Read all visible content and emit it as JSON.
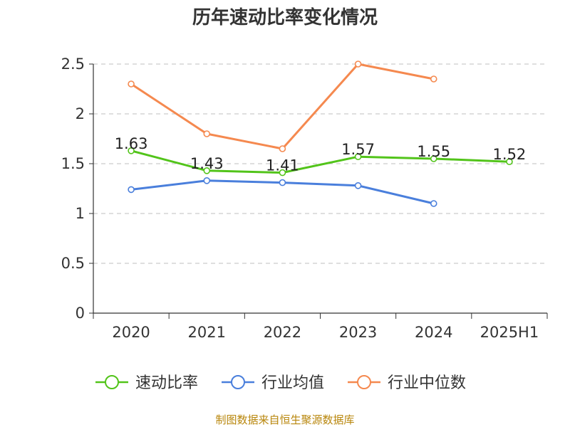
{
  "chart_data": {
    "type": "line",
    "title": "历年速动比率变化情况",
    "categories": [
      "2020",
      "2021",
      "2022",
      "2023",
      "2024",
      "2025H1"
    ],
    "ylim": [
      0,
      2.5
    ],
    "yticks": [
      "0",
      "0.5",
      "1",
      "1.5",
      "2",
      "2.5"
    ],
    "grid": true,
    "legend_position": "bottom",
    "series": [
      {
        "name": "速动比率",
        "color": "#52c41a",
        "values": [
          1.63,
          1.43,
          1.41,
          1.57,
          1.55,
          1.52
        ],
        "labels": [
          "1.63",
          "1.43",
          "1.41",
          "1.57",
          "1.55",
          "1.52"
        ]
      },
      {
        "name": "行业均值",
        "color": "#4a7fdc",
        "values": [
          1.24,
          1.33,
          1.31,
          1.28,
          1.1,
          null
        ]
      },
      {
        "name": "行业中位数",
        "color": "#f5894f",
        "values": [
          2.3,
          1.8,
          1.65,
          2.5,
          2.35,
          null
        ]
      }
    ],
    "source": "制图数据来自恒生聚源数据库"
  }
}
